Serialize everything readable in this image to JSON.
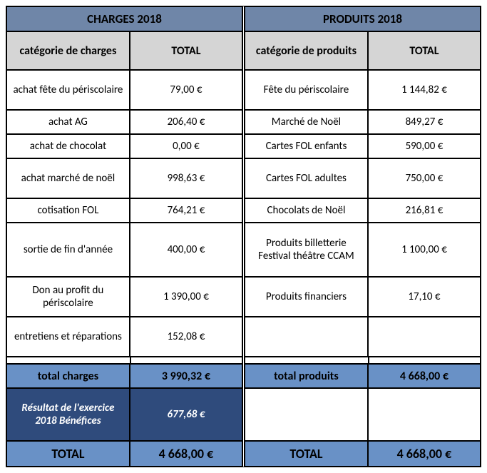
{
  "colors": {
    "header_bg": "#6f86a8",
    "subheader_bg": "#d5d5d5",
    "subtotal_bg": "#6991c6",
    "result_bg": "#2f4b7c",
    "result_fg": "#ffffff",
    "border": "#000000",
    "body_bg": "#ffffff"
  },
  "charges": {
    "title": "CHARGES 2018",
    "col1": "catégorie de charges",
    "col2": "TOTAL",
    "rows": [
      {
        "label": "achat fête du périscolaire",
        "value": "79,00 €",
        "h": "tall"
      },
      {
        "label": "achat AG",
        "value": "206,40 €",
        "h": ""
      },
      {
        "label": "achat de chocolat",
        "value": "0,00 €",
        "h": ""
      },
      {
        "label": "achat marché de noël",
        "value": "998,63 €",
        "h": "tall"
      },
      {
        "label": "cotisation FOL",
        "value": "764,21 €",
        "h": ""
      },
      {
        "label": "sortie de fin d'année",
        "value": "400,00 €",
        "h": "xtall"
      },
      {
        "label": "Don au profit du périscolaire",
        "value": "1 390,00 €",
        "h": "tall"
      },
      {
        "label": "entretiens et réparations",
        "value": "152,08 €",
        "h": "tall"
      }
    ],
    "subtotal_label": "total charges",
    "subtotal_value": "3 990,32 €",
    "result_label": "Résultat de l'exercice 2018 Bénéfices",
    "result_value": "677,68 €",
    "grand_label": "TOTAL",
    "grand_value": "4 668,00 €"
  },
  "produits": {
    "title": "PRODUITS 2018",
    "col1": "catégorie de produits",
    "col2": "TOTAL",
    "rows": [
      {
        "label": "Fête du périscolaire",
        "value": "1 144,82 €",
        "h": "tall"
      },
      {
        "label": "Marché de Noël",
        "value": "849,27 €",
        "h": ""
      },
      {
        "label": "Cartes FOL enfants",
        "value": "590,00 €",
        "h": ""
      },
      {
        "label": "Cartes FOL adultes",
        "value": "750,00 €",
        "h": "tall"
      },
      {
        "label": "Chocolats de Noël",
        "value": "216,81 €",
        "h": ""
      },
      {
        "label": "Produits billetterie Festival théâtre CCAM",
        "value": "1 100,00 €",
        "h": "xtall"
      },
      {
        "label": "Produits financiers",
        "value": "17,10 €",
        "h": "tall"
      },
      {
        "label": "",
        "value": "",
        "h": "tall"
      }
    ],
    "subtotal_label": "total produits",
    "subtotal_value": "4 668,00 €",
    "result_label": "",
    "result_value": "",
    "grand_label": "TOTAL",
    "grand_value": "4 668,00 €"
  }
}
